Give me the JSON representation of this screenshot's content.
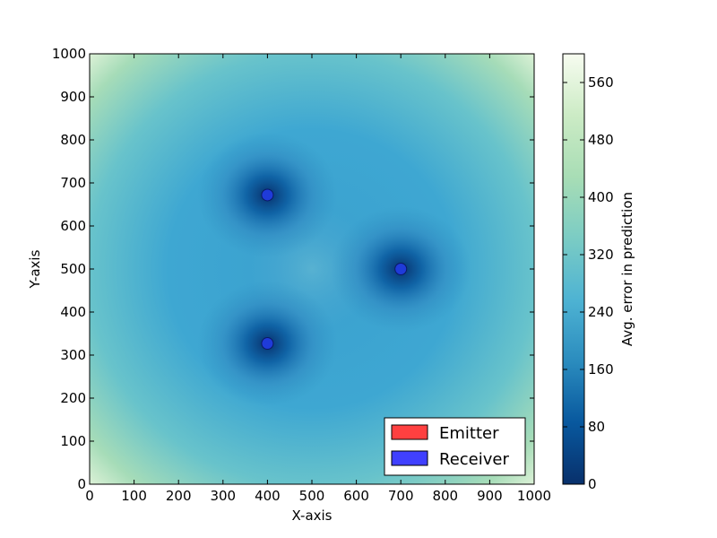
{
  "chart_data": [
    {
      "type": "heatmap",
      "xlabel": "X-axis",
      "ylabel": "Y-axis",
      "xlim": [
        0,
        1000
      ],
      "ylim": [
        0,
        1000
      ],
      "x_ticks": [
        0,
        100,
        200,
        300,
        400,
        500,
        600,
        700,
        800,
        900,
        1000
      ],
      "y_ticks": [
        0,
        100,
        200,
        300,
        400,
        500,
        600,
        700,
        800,
        900,
        1000
      ],
      "grid": false,
      "colorbar": {
        "label": "Avg. error in prediction",
        "range": [
          0,
          600
        ],
        "ticks": [
          0,
          80,
          160,
          240,
          320,
          400,
          480,
          560
        ],
        "colormap": [
          "#08306b",
          "#08589e",
          "#2b8cbe",
          "#4eb3d3",
          "#7bccc4",
          "#a8ddb5",
          "#ccebc5",
          "#f7fcf0"
        ]
      },
      "receivers": [
        {
          "x": 400,
          "y": 672
        },
        {
          "x": 700,
          "y": 500
        },
        {
          "x": 400,
          "y": 327
        }
      ],
      "legend": {
        "placement": "lower-right",
        "entries": [
          {
            "label": "Emitter",
            "color": "#ff4040"
          },
          {
            "label": "Receiver",
            "color": "#4040ff"
          }
        ]
      },
      "marker_color": "#1f3bd9"
    }
  ]
}
